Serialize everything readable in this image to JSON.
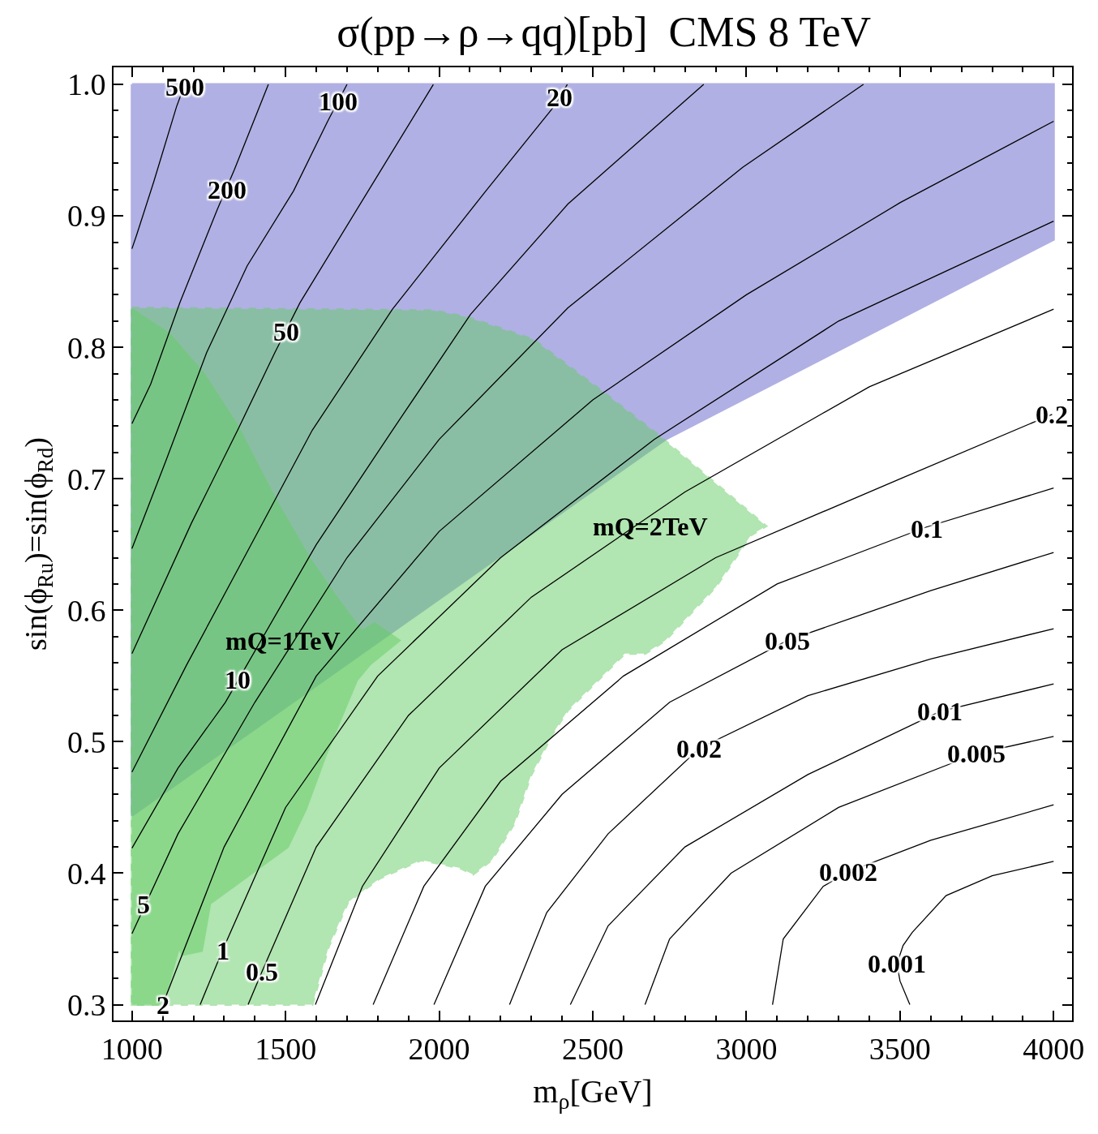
{
  "chart_data": {
    "type": "line",
    "title": "σ(pp→ρ→qq)[pb]  CMS 8 TeV",
    "xlabel": "m$_{ρ}$[GeV]",
    "ylabel": "sin(ϕ$_{Ru}$)=sin(ϕ$_{Rd}$)",
    "xlim": [
      940,
      4060
    ],
    "ylim": [
      0.288,
      1.013
    ],
    "xticks": [
      1000,
      1500,
      2000,
      2500,
      3000,
      3500,
      4000
    ],
    "yticks": [
      0.3,
      0.4,
      0.5,
      0.6,
      0.7,
      0.8,
      0.9,
      {
        "value": 1,
        "label": "1.0"
      }
    ],
    "grid": false,
    "legend": false,
    "marker": "none",
    "series": [
      {
        "type": "area",
        "color": "#b0b0e4",
        "line_style": "solid",
        "x": [
          1000,
          4000,
          4000,
          2736,
          1000,
          1000
        ],
        "values": [
          1.0,
          1.0,
          0.882,
          0.73,
          0.444,
          1.0
        ]
      },
      {
        "type": "area",
        "name": "mQ=2TeV",
        "color": "#66cc66",
        "line_style": "dashed",
        "x": [
          1000,
          1981,
          2092,
          2306,
          2517,
          2715,
          3064,
          3014,
          2901,
          2736,
          2670,
          2604,
          2419,
          2369,
          2298,
          2245,
          2171,
          2110,
          2068,
          1941,
          1806,
          1703,
          1640,
          1587,
          1000,
          1000
        ],
        "values": [
          0.83,
          0.828,
          0.823,
          0.806,
          0.769,
          0.733,
          0.664,
          0.657,
          0.618,
          0.577,
          0.567,
          0.567,
          0.524,
          0.506,
          0.474,
          0.438,
          0.41,
          0.399,
          0.404,
          0.41,
          0.396,
          0.378,
          0.344,
          0.3,
          0.3,
          0.83
        ]
      },
      {
        "type": "area",
        "name": "mQ=1TeV",
        "color": "#66cc66",
        "line_style": "solid",
        "x": [
          1000,
          1122,
          1233,
          1344,
          1465,
          1576,
          1671,
          1748,
          1790,
          1870,
          1775,
          1732,
          1671,
          1629,
          1566,
          1507,
          1254,
          1227,
          1164,
          1153,
          1100,
          1000,
          1000
        ],
        "values": [
          0.829,
          0.81,
          0.78,
          0.74,
          0.685,
          0.64,
          0.608,
          0.584,
          0.59,
          0.577,
          0.559,
          0.547,
          0.513,
          0.489,
          0.449,
          0.42,
          0.377,
          0.341,
          0.338,
          0.344,
          0.3,
          0.3,
          0.829
        ]
      },
      {
        "color": "#000000",
        "x": [
          1000,
          1016,
          1071,
          1145,
          1172
        ],
        "values": [
          0.875,
          0.886,
          0.926,
          0.983,
          1.0
        ]
      },
      {
        "color": "#000000",
        "x": [
          1000,
          1061,
          1156,
          1278,
          1333,
          1444
        ],
        "values": [
          0.742,
          0.772,
          0.834,
          0.905,
          0.935,
          1.0
        ]
      },
      {
        "color": "#000000",
        "x": [
          1000,
          1111,
          1243,
          1375,
          1526,
          1637,
          1700
        ],
        "values": [
          0.647,
          0.714,
          0.796,
          0.862,
          0.919,
          0.972,
          1.0
        ]
      },
      {
        "color": "#000000",
        "x": [
          1000,
          1193,
          1344,
          1465,
          1547,
          1769,
          1981
        ],
        "values": [
          0.567,
          0.666,
          0.737,
          0.796,
          0.834,
          0.919,
          1.0
        ]
      },
      {
        "color": "#000000",
        "x": [
          1000,
          1177,
          1365,
          1587,
          1848,
          2152,
          2366,
          2392,
          2417
        ],
        "values": [
          0.477,
          0.558,
          0.64,
          0.737,
          0.829,
          0.919,
          0.981,
          0.99,
          1.0
        ]
      },
      {
        "color": "#000000",
        "x": [
          1000,
          1150,
          1304,
          1600,
          1848,
          2102,
          2419,
          2861
        ],
        "values": [
          0.419,
          0.48,
          0.53,
          0.65,
          0.737,
          0.825,
          0.909,
          1.0
        ]
      },
      {
        "color": "#000000",
        "x": [
          1000,
          1150,
          1400,
          1700,
          2000,
          2419,
          2988,
          3381
        ],
        "values": [
          0.354,
          0.43,
          0.53,
          0.64,
          0.73,
          0.83,
          0.937,
          1.0
        ]
      },
      {
        "color": "#000000",
        "x": [
          1100,
          1300,
          1600,
          2000,
          2500,
          3000,
          3500,
          4000
        ],
        "values": [
          0.3,
          0.42,
          0.55,
          0.66,
          0.76,
          0.84,
          0.91,
          0.972
        ]
      },
      {
        "color": "#000000",
        "x": [
          1222,
          1296,
          1500,
          1800,
          2200,
          2700,
          3300,
          4000
        ],
        "values": [
          0.3,
          0.342,
          0.45,
          0.55,
          0.64,
          0.73,
          0.82,
          0.896
        ]
      },
      {
        "color": "#000000",
        "x": [
          1378,
          1423,
          1600,
          1900,
          2300,
          2800,
          3400,
          4000
        ],
        "values": [
          0.3,
          0.325,
          0.42,
          0.52,
          0.61,
          0.69,
          0.77,
          0.829
        ]
      },
      {
        "color": "#000000",
        "x": [
          1597,
          1750,
          2000,
          2400,
          2900,
          3500,
          3995
        ],
        "values": [
          0.3,
          0.39,
          0.48,
          0.57,
          0.64,
          0.7,
          0.749
        ]
      },
      {
        "color": "#000000",
        "x": [
          1785,
          1950,
          2200,
          2600,
          3100,
          3582,
          4000
        ],
        "values": [
          0.3,
          0.39,
          0.47,
          0.55,
          0.62,
          0.663,
          0.693
        ]
      },
      {
        "color": "#000000",
        "x": [
          1983,
          2150,
          2400,
          2750,
          3133,
          3600,
          4000
        ],
        "values": [
          0.3,
          0.39,
          0.46,
          0.53,
          0.577,
          0.615,
          0.644
        ]
      },
      {
        "color": "#000000",
        "x": [
          2229,
          2350,
          2550,
          2847,
          3200,
          3600,
          4000
        ],
        "values": [
          0.3,
          0.37,
          0.43,
          0.495,
          0.535,
          0.563,
          0.586
        ]
      },
      {
        "color": "#000000",
        "x": [
          2427,
          2550,
          2800,
          3200,
          3630,
          4000
        ],
        "values": [
          0.3,
          0.36,
          0.42,
          0.475,
          0.523,
          0.544
        ]
      },
      {
        "color": "#000000",
        "x": [
          2670,
          2750,
          2950,
          3300,
          3749,
          4000
        ],
        "values": [
          0.3,
          0.35,
          0.4,
          0.45,
          0.491,
          0.504
        ]
      },
      {
        "color": "#000000",
        "x": [
          3085,
          3120,
          3250,
          3331,
          3600,
          4000
        ],
        "values": [
          0.3,
          0.35,
          0.39,
          0.401,
          0.425,
          0.452
        ]
      },
      {
        "color": "#000000",
        "x": [
          3532,
          3500,
          3490,
          3510,
          3540,
          3650,
          3800,
          4000
        ],
        "values": [
          0.3,
          0.318,
          0.331,
          0.345,
          0.355,
          0.383,
          0.398,
          0.409
        ]
      }
    ],
    "annotations": [
      {
        "text": "500",
        "x": 1172,
        "y": 0.998
      },
      {
        "text": "200",
        "x": 1309,
        "y": 0.92
      },
      {
        "text": "100",
        "x": 1671,
        "y": 0.987
      },
      {
        "text": "50",
        "x": 1502,
        "y": 0.812
      },
      {
        "text": "20",
        "x": 2392,
        "y": 0.99
      },
      {
        "text": "10",
        "x": 1344,
        "y": 0.547
      },
      {
        "text": "5",
        "x": 1037,
        "y": 0.376
      },
      {
        "text": "2",
        "x": 1100,
        "y": 0.3
      },
      {
        "text": "1",
        "x": 1296,
        "y": 0.341
      },
      {
        "text": "0.5",
        "x": 1423,
        "y": 0.325
      },
      {
        "text": "0.2",
        "x": 3995,
        "y": 0.749
      },
      {
        "text": "0.1",
        "x": 3588,
        "y": 0.662
      },
      {
        "text": "0.05",
        "x": 3133,
        "y": 0.577
      },
      {
        "text": "0.02",
        "x": 2847,
        "y": 0.495
      },
      {
        "text": "0.01",
        "x": 3630,
        "y": 0.523
      },
      {
        "text": "0.005",
        "x": 3749,
        "y": 0.491
      },
      {
        "text": "0.002",
        "x": 3331,
        "y": 0.401
      },
      {
        "text": "0.001",
        "x": 3490,
        "y": 0.331
      }
    ]
  }
}
